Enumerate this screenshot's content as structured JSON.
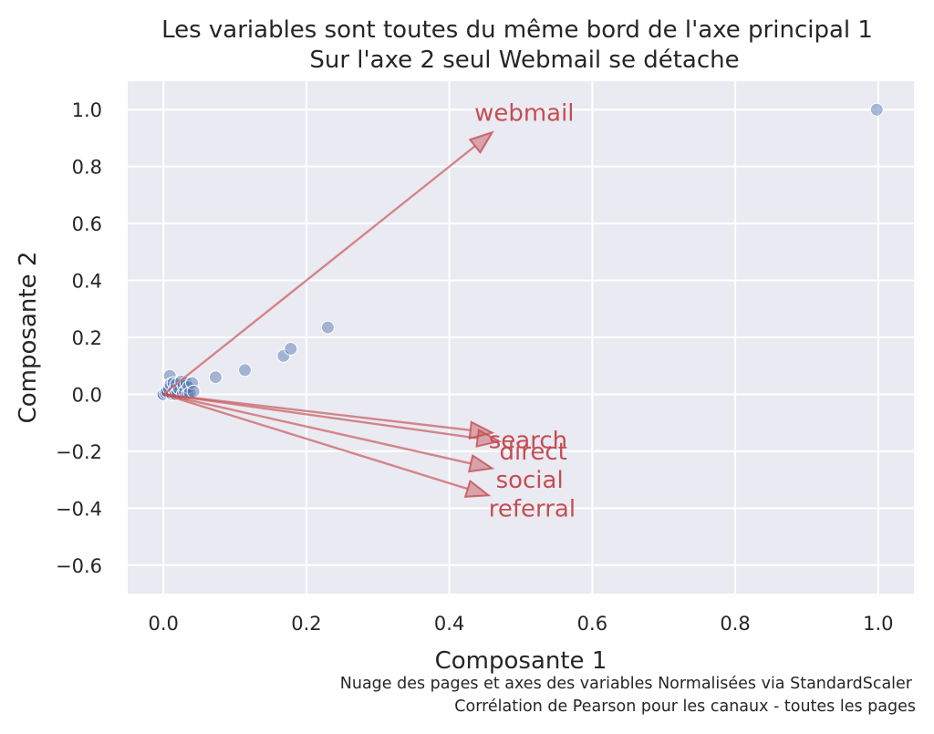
{
  "chart_data": {
    "type": "scatter",
    "title_lines": [
      "Les variables sont toutes du même bord de l'axe principal 1",
      "Sur l'axe 2 seul Webmail se détache"
    ],
    "xlabel": "Composante 1",
    "ylabel": "Composante 2",
    "xlim": [
      -0.05,
      1.05
    ],
    "ylim": [
      -0.7,
      1.1
    ],
    "x_ticks": [
      0.0,
      0.2,
      0.4,
      0.6,
      0.8,
      1.0
    ],
    "x_tick_labels": [
      "0.0",
      "0.2",
      "0.4",
      "0.6",
      "0.8",
      "1.0"
    ],
    "y_ticks": [
      1.0,
      0.8,
      0.6,
      0.4,
      0.2,
      0.0,
      -0.2,
      -0.4,
      -0.6
    ],
    "y_tick_labels": [
      "1.0",
      "0.8",
      "0.6",
      "0.4",
      "0.2",
      "0.0",
      "−0.2",
      "−0.4",
      "−0.6"
    ],
    "grid": true,
    "captions": [
      "Nuage des pages et axes des variables Normalisées via StandardScaler",
      "Corrélation de Pearson pour les canaux - toutes les pages"
    ],
    "points": [
      {
        "x": 0.0,
        "y": 0.0
      },
      {
        "x": 0.0,
        "y": 0.0
      },
      {
        "x": 0.0,
        "y": 0.0
      },
      {
        "x": 0.003,
        "y": 0.005
      },
      {
        "x": 0.005,
        "y": 0.01
      },
      {
        "x": 0.008,
        "y": 0.02
      },
      {
        "x": 0.009,
        "y": 0.065
      },
      {
        "x": 0.01,
        "y": 0.035
      },
      {
        "x": 0.012,
        "y": 0.0
      },
      {
        "x": 0.014,
        "y": 0.04
      },
      {
        "x": 0.015,
        "y": 0.015
      },
      {
        "x": 0.017,
        "y": 0.0
      },
      {
        "x": 0.018,
        "y": 0.035
      },
      {
        "x": 0.02,
        "y": 0.005
      },
      {
        "x": 0.022,
        "y": 0.02
      },
      {
        "x": 0.025,
        "y": 0.045
      },
      {
        "x": 0.027,
        "y": 0.0
      },
      {
        "x": 0.028,
        "y": 0.03
      },
      {
        "x": 0.03,
        "y": 0.01
      },
      {
        "x": 0.032,
        "y": 0.04
      },
      {
        "x": 0.034,
        "y": 0.0
      },
      {
        "x": 0.035,
        "y": 0.025
      },
      {
        "x": 0.037,
        "y": 0.005
      },
      {
        "x": 0.04,
        "y": 0.04
      },
      {
        "x": 0.042,
        "y": 0.01
      },
      {
        "x": 0.073,
        "y": 0.06
      },
      {
        "x": 0.114,
        "y": 0.085
      },
      {
        "x": 0.168,
        "y": 0.135
      },
      {
        "x": 0.178,
        "y": 0.16
      },
      {
        "x": 0.23,
        "y": 0.235
      },
      {
        "x": 0.998,
        "y": 1.0
      }
    ],
    "vectors": [
      {
        "label": "webmail",
        "x": 0.46,
        "y": 0.92,
        "label_x": 0.435,
        "label_y": 0.99
      },
      {
        "label": "search",
        "x": 0.46,
        "y": -0.135,
        "label_x": 0.455,
        "label_y": -0.16
      },
      {
        "label": "direct",
        "x": 0.47,
        "y": -0.165,
        "label_x": 0.47,
        "label_y": -0.2
      },
      {
        "label": "social",
        "x": 0.46,
        "y": -0.26,
        "label_x": 0.465,
        "label_y": -0.3
      },
      {
        "label": "referral",
        "x": 0.455,
        "y": -0.355,
        "label_x": 0.455,
        "label_y": -0.4
      }
    ]
  }
}
